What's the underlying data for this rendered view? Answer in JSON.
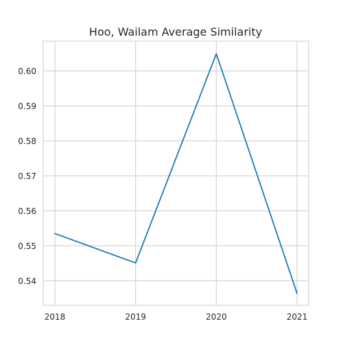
{
  "chart_data": {
    "type": "line",
    "title": "Hoo, Wailam Average Similarity",
    "xlabel": "",
    "ylabel": "",
    "x": [
      "2018",
      "2019",
      "2020",
      "2021"
    ],
    "series": [
      {
        "values": [
          0.5535,
          0.5451,
          0.6049,
          0.5364
        ],
        "color": "#1f77b4"
      }
    ],
    "ylim": [
      0.533,
      0.6085
    ],
    "yticks": [
      0.54,
      0.55,
      0.56,
      0.57,
      0.58,
      0.59,
      0.6
    ],
    "ytick_labels": [
      "0.54",
      "0.55",
      "0.56",
      "0.57",
      "0.58",
      "0.59",
      "0.60"
    ],
    "grid": true,
    "legend": "none"
  }
}
